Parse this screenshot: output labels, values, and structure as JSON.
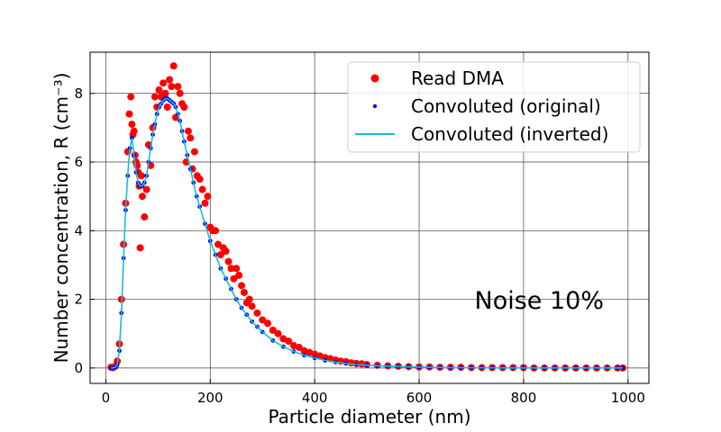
{
  "chart_data": {
    "type": "scatter",
    "title": "",
    "xlabel": "Particle diameter (nm)",
    "ylabel": "Number concentration, R (cm⁻³)",
    "xlim": [
      -30,
      1040
    ],
    "ylim": [
      -0.45,
      9.2
    ],
    "xticks": [
      0,
      200,
      400,
      600,
      800,
      1000
    ],
    "yticks": [
      0,
      2,
      4,
      6,
      8
    ],
    "grid": true,
    "legend_position": "top-right",
    "annotation": "Noise 10%",
    "series": [
      {
        "name": "Read DMA",
        "style": "markers",
        "color": "#ff0000",
        "x": [
          10,
          14,
          18,
          22,
          26,
          30,
          34,
          38,
          42,
          45,
          48,
          50,
          52,
          54,
          56,
          58,
          60,
          62,
          64,
          66,
          68,
          70,
          74,
          78,
          82,
          86,
          90,
          94,
          98,
          102,
          106,
          110,
          114,
          118,
          122,
          126,
          130,
          134,
          138,
          142,
          146,
          150,
          154,
          158,
          162,
          166,
          170,
          175,
          180,
          185,
          190,
          195,
          200,
          205,
          210,
          215,
          220,
          225,
          230,
          235,
          240,
          245,
          250,
          255,
          260,
          265,
          270,
          275,
          280,
          290,
          300,
          310,
          320,
          330,
          340,
          350,
          360,
          370,
          380,
          390,
          400,
          410,
          420,
          430,
          440,
          450,
          460,
          470,
          480,
          490,
          500,
          520,
          540,
          560,
          580,
          600,
          620,
          640,
          660,
          680,
          700,
          720,
          740,
          760,
          780,
          800,
          820,
          840,
          860,
          880,
          900,
          920,
          940,
          960,
          980,
          990
        ],
        "y": [
          0.02,
          0.01,
          0.05,
          0.2,
          0.7,
          2.0,
          3.6,
          4.8,
          6.3,
          7.4,
          7.9,
          7.1,
          6.8,
          6.9,
          6.2,
          6.0,
          5.9,
          5.7,
          5.3,
          3.5,
          5.6,
          5.0,
          4.4,
          5.2,
          6.5,
          5.9,
          7.0,
          7.9,
          7.6,
          8.1,
          7.9,
          8.3,
          8.0,
          7.6,
          8.4,
          8.2,
          8.8,
          7.3,
          8.2,
          8.0,
          7.7,
          7.6,
          6.0,
          6.9,
          6.7,
          5.8,
          6.3,
          5.6,
          5.5,
          5.2,
          4.8,
          5.0,
          4.1,
          4.0,
          4.0,
          3.6,
          3.3,
          3.5,
          3.4,
          3.1,
          2.9,
          2.6,
          2.9,
          2.7,
          2.4,
          2.2,
          1.9,
          2.0,
          1.8,
          1.6,
          1.4,
          1.3,
          1.1,
          1.0,
          0.85,
          0.78,
          0.65,
          0.6,
          0.5,
          0.45,
          0.4,
          0.35,
          0.3,
          0.27,
          0.23,
          0.2,
          0.18,
          0.15,
          0.13,
          0.12,
          0.1,
          0.08,
          0.06,
          0.05,
          0.04,
          0.03,
          0.03,
          0.02,
          0.02,
          0.02,
          0.01,
          0.01,
          0.01,
          0.01,
          0.01,
          0.01,
          0.0,
          0.0,
          0.0,
          0.0,
          0.0,
          0.0,
          0.0,
          0.0,
          0.0,
          0.0
        ]
      },
      {
        "name": "Convoluted (original)",
        "style": "markers",
        "color": "#0000ff",
        "x": [
          10,
          14,
          18,
          22,
          26,
          30,
          34,
          38,
          42,
          46,
          50,
          54,
          58,
          62,
          66,
          70,
          74,
          78,
          82,
          86,
          90,
          94,
          98,
          102,
          106,
          110,
          114,
          118,
          122,
          126,
          130,
          134,
          138,
          142,
          146,
          150,
          156,
          162,
          168,
          174,
          180,
          190,
          200,
          210,
          220,
          230,
          240,
          250,
          260,
          270,
          280,
          290,
          300,
          320,
          340,
          360,
          380,
          400,
          420,
          440,
          460,
          480,
          500,
          520,
          540,
          560,
          580,
          600,
          620,
          640,
          660,
          680,
          700,
          720,
          740,
          760,
          780,
          800,
          820,
          840,
          860,
          880,
          900,
          920,
          940,
          960,
          980,
          990
        ],
        "y": [
          0.0,
          0.0,
          0.02,
          0.1,
          0.5,
          1.6,
          3.2,
          4.6,
          5.6,
          6.4,
          6.7,
          6.2,
          5.7,
          5.4,
          5.3,
          5.3,
          5.4,
          5.6,
          6.0,
          6.4,
          6.8,
          7.1,
          7.4,
          7.6,
          7.7,
          7.8,
          7.85,
          7.85,
          7.8,
          7.75,
          7.7,
          7.6,
          7.4,
          7.2,
          6.9,
          6.6,
          6.2,
          5.8,
          5.4,
          5.0,
          4.7,
          4.2,
          3.7,
          3.3,
          2.9,
          2.6,
          2.3,
          2.0,
          1.75,
          1.55,
          1.35,
          1.2,
          1.05,
          0.8,
          0.62,
          0.48,
          0.37,
          0.29,
          0.22,
          0.17,
          0.13,
          0.1,
          0.08,
          0.06,
          0.05,
          0.04,
          0.03,
          0.02,
          0.02,
          0.015,
          0.01,
          0.01,
          0.01,
          0.005,
          0.005,
          0.0,
          0.0,
          0.0,
          0.0,
          0.0,
          0.0,
          0.0,
          0.0,
          0.0,
          0.0,
          0.0,
          0.0,
          0.0
        ]
      },
      {
        "name": "Convoluted (inverted)",
        "style": "line",
        "color": "#17becf",
        "x": [
          10,
          14,
          18,
          22,
          26,
          30,
          34,
          38,
          42,
          46,
          50,
          54,
          58,
          62,
          66,
          70,
          74,
          78,
          82,
          86,
          90,
          94,
          98,
          102,
          106,
          110,
          114,
          118,
          122,
          126,
          130,
          134,
          138,
          142,
          146,
          150,
          156,
          162,
          168,
          174,
          180,
          190,
          200,
          210,
          220,
          230,
          240,
          250,
          260,
          270,
          280,
          290,
          300,
          320,
          340,
          360,
          380,
          400,
          420,
          440,
          460,
          480,
          500,
          540,
          580,
          620,
          660,
          700,
          760,
          820,
          880,
          940,
          990
        ],
        "y": [
          0.0,
          0.0,
          0.02,
          0.1,
          0.5,
          1.6,
          3.2,
          4.6,
          5.6,
          6.4,
          6.7,
          6.2,
          5.7,
          5.4,
          5.3,
          5.3,
          5.4,
          5.6,
          6.0,
          6.4,
          6.8,
          7.1,
          7.4,
          7.6,
          7.7,
          7.8,
          7.85,
          7.85,
          7.8,
          7.75,
          7.7,
          7.6,
          7.4,
          7.2,
          6.9,
          6.6,
          6.2,
          5.8,
          5.4,
          5.0,
          4.7,
          4.2,
          3.7,
          3.3,
          2.9,
          2.6,
          2.3,
          2.0,
          1.75,
          1.55,
          1.35,
          1.2,
          1.05,
          0.8,
          0.62,
          0.48,
          0.37,
          0.29,
          0.22,
          0.17,
          0.13,
          0.1,
          0.08,
          0.05,
          0.03,
          0.02,
          0.01,
          0.01,
          0.0,
          0.0,
          0.0,
          0.0,
          0.0
        ]
      }
    ]
  }
}
